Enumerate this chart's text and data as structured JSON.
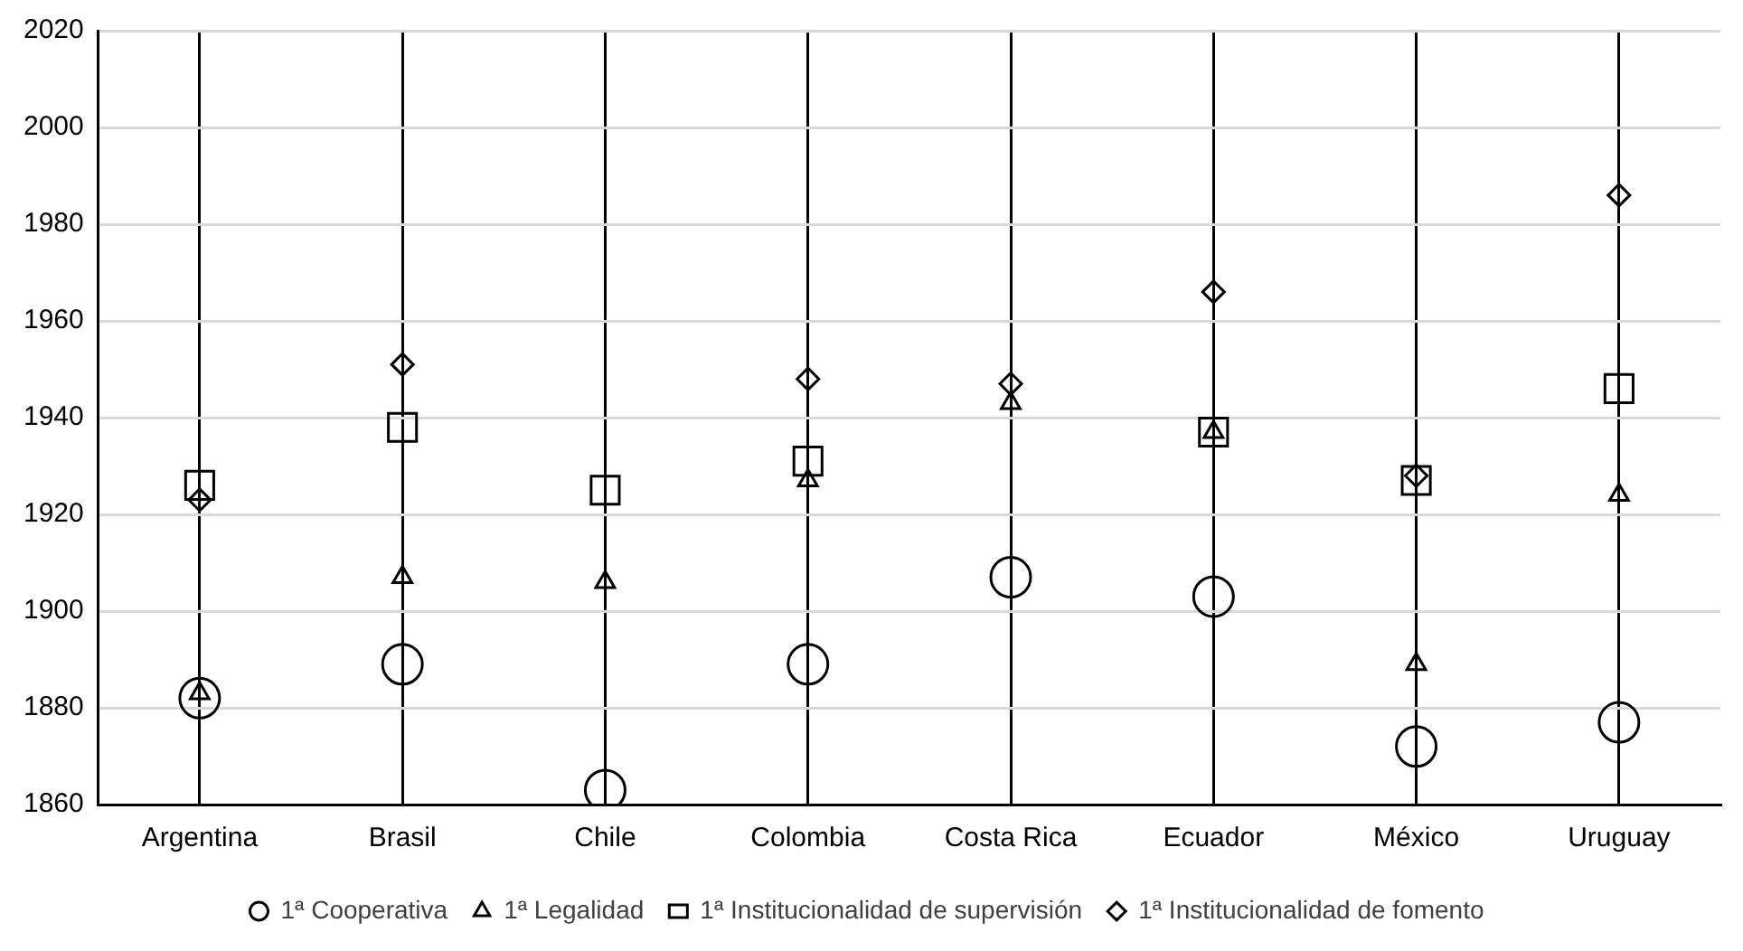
{
  "chart_data": {
    "type": "scatter",
    "categories": [
      "Argentina",
      "Brasil",
      "Chile",
      "Colombia",
      "Costa Rica",
      "Ecuador",
      "México",
      "Uruguay"
    ],
    "series": [
      {
        "name": "1ª Cooperativa",
        "color": "#000000",
        "marker": "circle",
        "values": [
          1882,
          1889,
          1863,
          1889,
          1907,
          1903,
          1872,
          1877
        ]
      },
      {
        "name": "1ª Legalidad",
        "color": "#000000",
        "marker": "triangle",
        "values": [
          1883,
          1907,
          1906,
          1927,
          1943,
          1937,
          1889,
          1924
        ]
      },
      {
        "name": "1ª Institucionalidad de supervisión",
        "color": "#000000",
        "marker": "square",
        "values": [
          1926,
          1938,
          1925,
          1931,
          null,
          1937,
          1927,
          1946
        ]
      },
      {
        "name": "1ª Institucionalidad de fomento",
        "color": "#000000",
        "marker": "diamond",
        "values": [
          1923,
          1951,
          null,
          1948,
          1947,
          1966,
          1928,
          1986
        ]
      }
    ],
    "ylim": [
      1860,
      2020
    ],
    "yticks": [
      1860,
      1880,
      1900,
      1920,
      1940,
      1960,
      1980,
      2000,
      2020
    ],
    "grid": true,
    "legend": "bottom"
  }
}
